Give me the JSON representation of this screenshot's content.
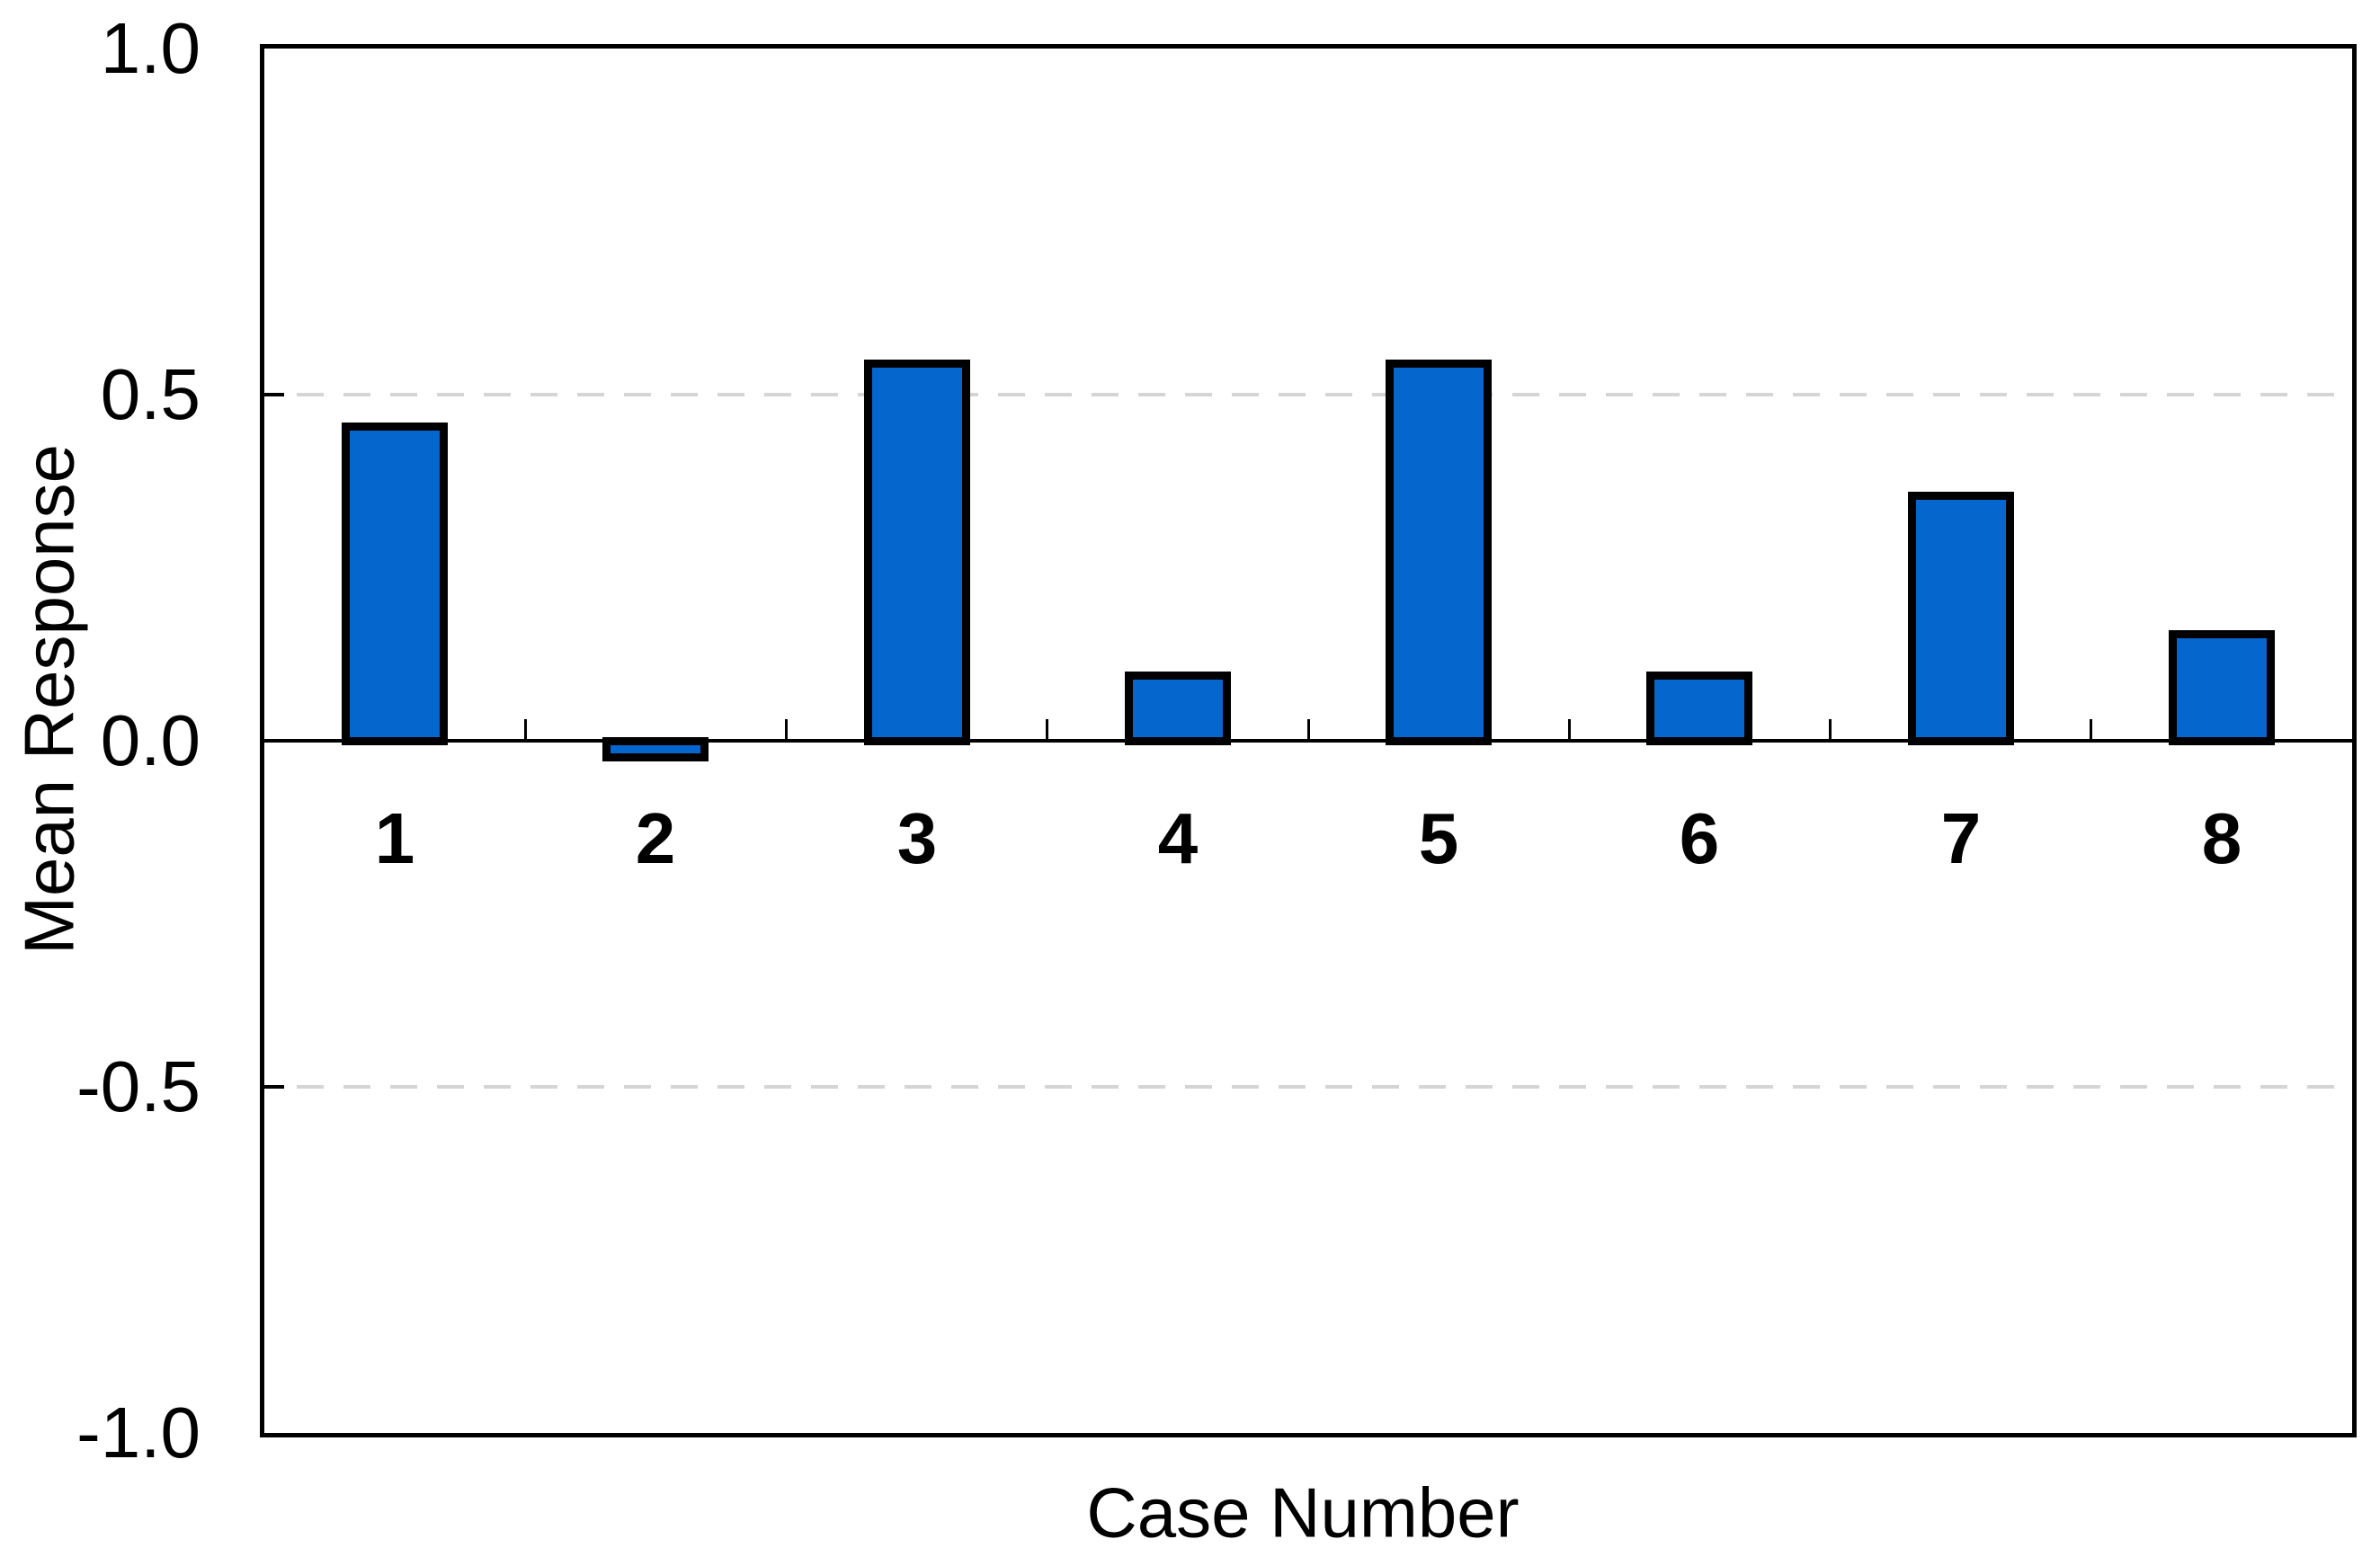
{
  "chart_data": {
    "type": "bar",
    "title": "",
    "xlabel": "Case Number",
    "ylabel": "Mean Response",
    "categories": [
      "1",
      "2",
      "3",
      "4",
      "5",
      "6",
      "7",
      "8"
    ],
    "values": [
      0.46,
      -0.03,
      0.55,
      0.1,
      0.55,
      0.1,
      0.36,
      0.16
    ],
    "ylim": [
      -1.0,
      1.0
    ],
    "yticks": [
      {
        "value": 1.0,
        "label": "1.0"
      },
      {
        "value": 0.5,
        "label": "0.5"
      },
      {
        "value": 0.0,
        "label": "0.0"
      },
      {
        "value": -0.5,
        "label": "-0.5"
      },
      {
        "value": -1.0,
        "label": "-1.0"
      }
    ],
    "gridlines_at": [
      0.5,
      -0.5
    ],
    "grid_style": "dashed",
    "legend": "none",
    "bar_color": "#0566cd",
    "bar_border_color": "#000000",
    "gridline_color": "#d5d5d5",
    "axis_color": "#000000",
    "text_color": "#000000"
  }
}
